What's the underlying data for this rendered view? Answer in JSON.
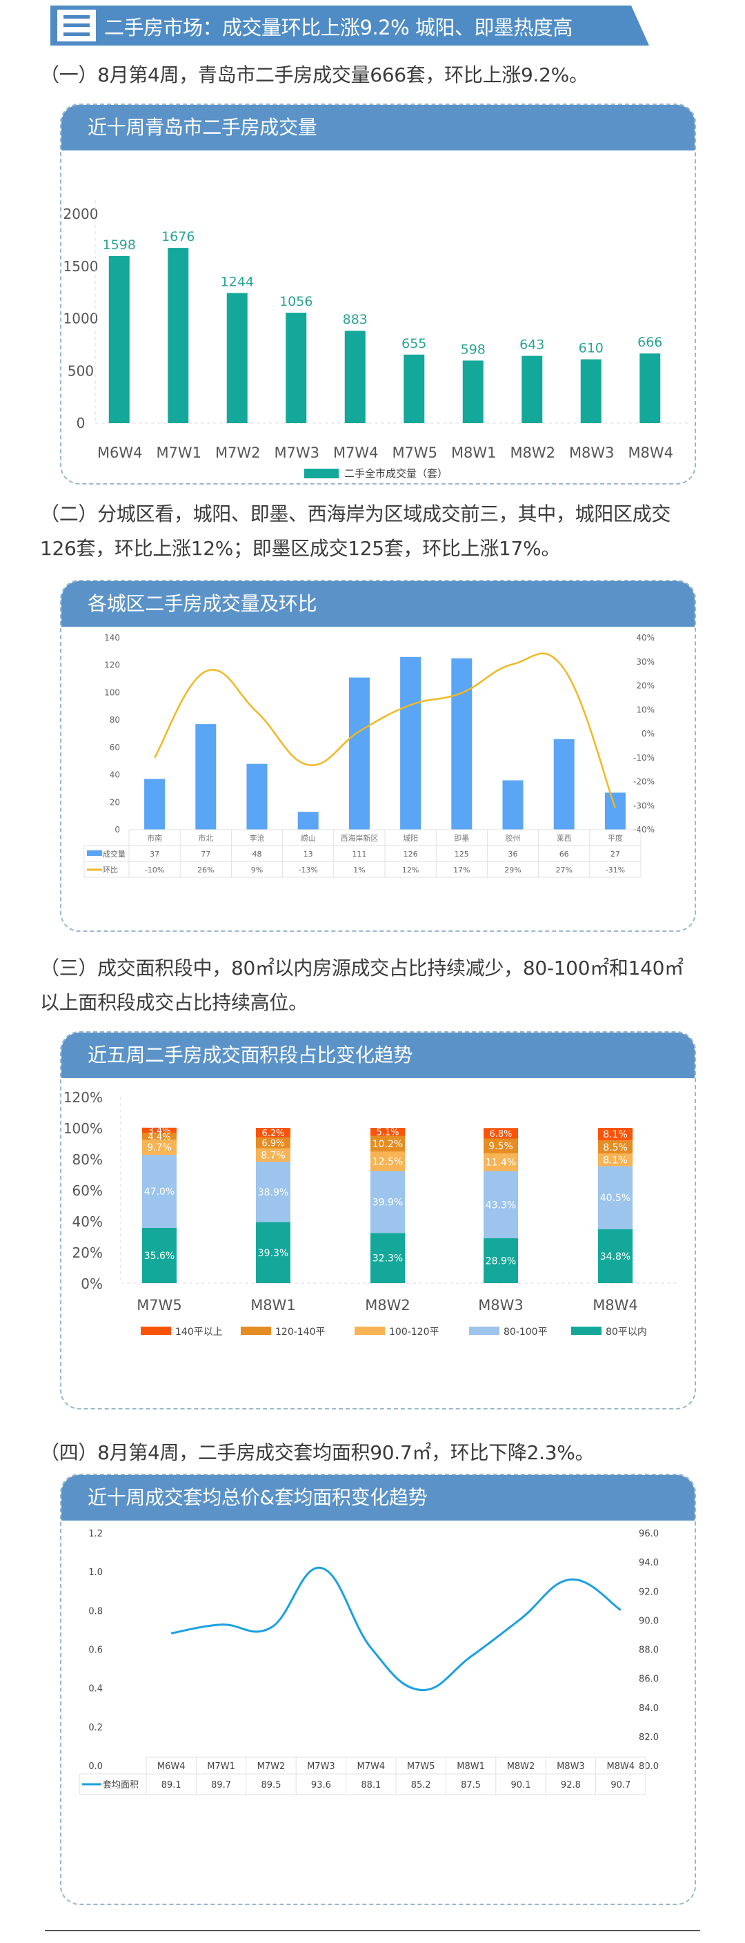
{
  "banner": {
    "number": "三",
    "title": "二手房市场：成交量环比上涨9.2%  城阳、即墨热度高",
    "color": "#4f8cc6"
  },
  "paragraphs": [
    "（一）8月第4周，青岛市二手房成交量666套，环比上涨9.2%。",
    "（二）分城区看，城阳、即墨、西海岸为区域成交前三，其中，城阳区成交126套，环比上涨12%；即墨区成交125套，环比上涨17%。",
    "（三）成交面积段中，80㎡以内房源成交占比持续减少，80-100㎡和140㎡以上面积段成交占比持续高位。",
    "（四）8月第4周，二手房成交套均面积90.7㎡，环比下降2.3%。"
  ],
  "cards": [
    {
      "title": "近十周青岛市二手房成交量"
    },
    {
      "title": "各城区二手房成交量及环比"
    },
    {
      "title": "近五周二手房成交面积段占比变化趋势"
    },
    {
      "title": "近十周成交套均总价&套均面积变化趋势"
    }
  ],
  "chart_data": [
    {
      "type": "bar",
      "title": "近十周青岛市二手房成交量",
      "categories": [
        "M6W4",
        "M7W1",
        "M7W2",
        "M7W3",
        "M7W4",
        "M7W5",
        "M8W1",
        "M8W2",
        "M8W3",
        "M8W4"
      ],
      "series": [
        {
          "name": "二手全市成交量（套）",
          "values": [
            1598,
            1676,
            1244,
            1056,
            883,
            655,
            598,
            643,
            610,
            666
          ],
          "color": "#13a89a"
        }
      ],
      "yticks": [
        "0",
        "500",
        "1000",
        "1500",
        "2000"
      ],
      "ylim": [
        0,
        2000
      ],
      "legend_position": "bottom",
      "grid": false
    },
    {
      "type": "bar+line",
      "title": "各城区二手房成交量及环比",
      "categories": [
        "市南",
        "市北",
        "李沧",
        "崂山",
        "西海岸新区",
        "城阳",
        "即墨",
        "胶州",
        "莱西",
        "平度"
      ],
      "series": [
        {
          "name": "成交量",
          "type": "bar",
          "axis": "left",
          "values": [
            37,
            77,
            48,
            13,
            111,
            126,
            125,
            36,
            66,
            27
          ],
          "color": "#5aa5f5"
        },
        {
          "name": "环比",
          "type": "line",
          "axis": "right",
          "values": [
            -10,
            26,
            9,
            -13,
            1,
            12,
            17,
            29,
            27,
            -31
          ],
          "display": [
            "-10%",
            "26%",
            "9%",
            "-13%",
            "1%",
            "12%",
            "17%",
            "29%",
            "27%",
            "-31%"
          ],
          "color": "#f0b823"
        }
      ],
      "yticks_left": [
        "0",
        "20",
        "40",
        "60",
        "80",
        "100",
        "120",
        "140"
      ],
      "yticks_right": [
        "-40%",
        "-30%",
        "-20%",
        "-10%",
        "0%",
        "10%",
        "20%",
        "30%",
        "40%"
      ],
      "ylim_left": [
        0,
        140
      ],
      "ylim_right": [
        -40,
        40
      ],
      "data_table": true
    },
    {
      "type": "bar",
      "stacked": true,
      "title": "近五周二手房成交面积段占比变化趋势",
      "categories": [
        "M7W5",
        "M8W1",
        "M8W2",
        "M8W3",
        "M8W4"
      ],
      "series": [
        {
          "name": "80平以内",
          "values": [
            35.6,
            39.3,
            32.3,
            28.9,
            34.8
          ],
          "color": "#13a89a"
        },
        {
          "name": "80-100平",
          "values": [
            47.0,
            38.9,
            39.9,
            43.3,
            40.5
          ],
          "color": "#9cc4ec"
        },
        {
          "name": "100-120平",
          "values": [
            9.7,
            8.7,
            12.5,
            11.4,
            8.1
          ],
          "color": "#f8b354"
        },
        {
          "name": "120-140平",
          "values": [
            4.4,
            6.9,
            10.2,
            9.5,
            8.5
          ],
          "color": "#e58d23"
        },
        {
          "name": "140平以上",
          "values": [
            3.4,
            6.2,
            5.1,
            6.8,
            8.1
          ],
          "color": "#fb5409"
        }
      ],
      "legend_order": [
        "140平以上",
        "120-140平",
        "100-120平",
        "80-100平",
        "80平以内"
      ],
      "yticks": [
        "0%",
        "20%",
        "40%",
        "60%",
        "80%",
        "100%",
        "120%"
      ],
      "ylim": [
        0,
        120
      ],
      "legend_position": "bottom"
    },
    {
      "type": "line",
      "title": "近十周成交套均总价&套均面积变化趋势",
      "categories": [
        "M6W4",
        "M7W1",
        "M7W2",
        "M7W3",
        "M7W4",
        "M7W5",
        "M8W1",
        "M8W2",
        "M8W3",
        "M8W4"
      ],
      "series": [
        {
          "name": "套均面积",
          "axis": "right",
          "values": [
            89.1,
            89.7,
            89.5,
            93.6,
            88.1,
            85.2,
            87.5,
            90.1,
            92.8,
            90.7
          ],
          "display": [
            "89.1",
            "89.7",
            "89.5",
            "93.6",
            "88.1",
            "85.2",
            "87.5",
            "90.1",
            "92.8",
            "90.7"
          ],
          "color": "#1aa0e2"
        }
      ],
      "yticks_left": [
        "0.0",
        "0.2",
        "0.4",
        "0.6",
        "0.8",
        "1.0",
        "1.2"
      ],
      "yticks_right": [
        "80.0",
        "82.0",
        "84.0",
        "86.0",
        "88.0",
        "90.0",
        "92.0",
        "94.0",
        "96.0"
      ],
      "ylim_left": [
        0,
        1.2
      ],
      "ylim_right": [
        80,
        96
      ],
      "data_table": true
    }
  ]
}
